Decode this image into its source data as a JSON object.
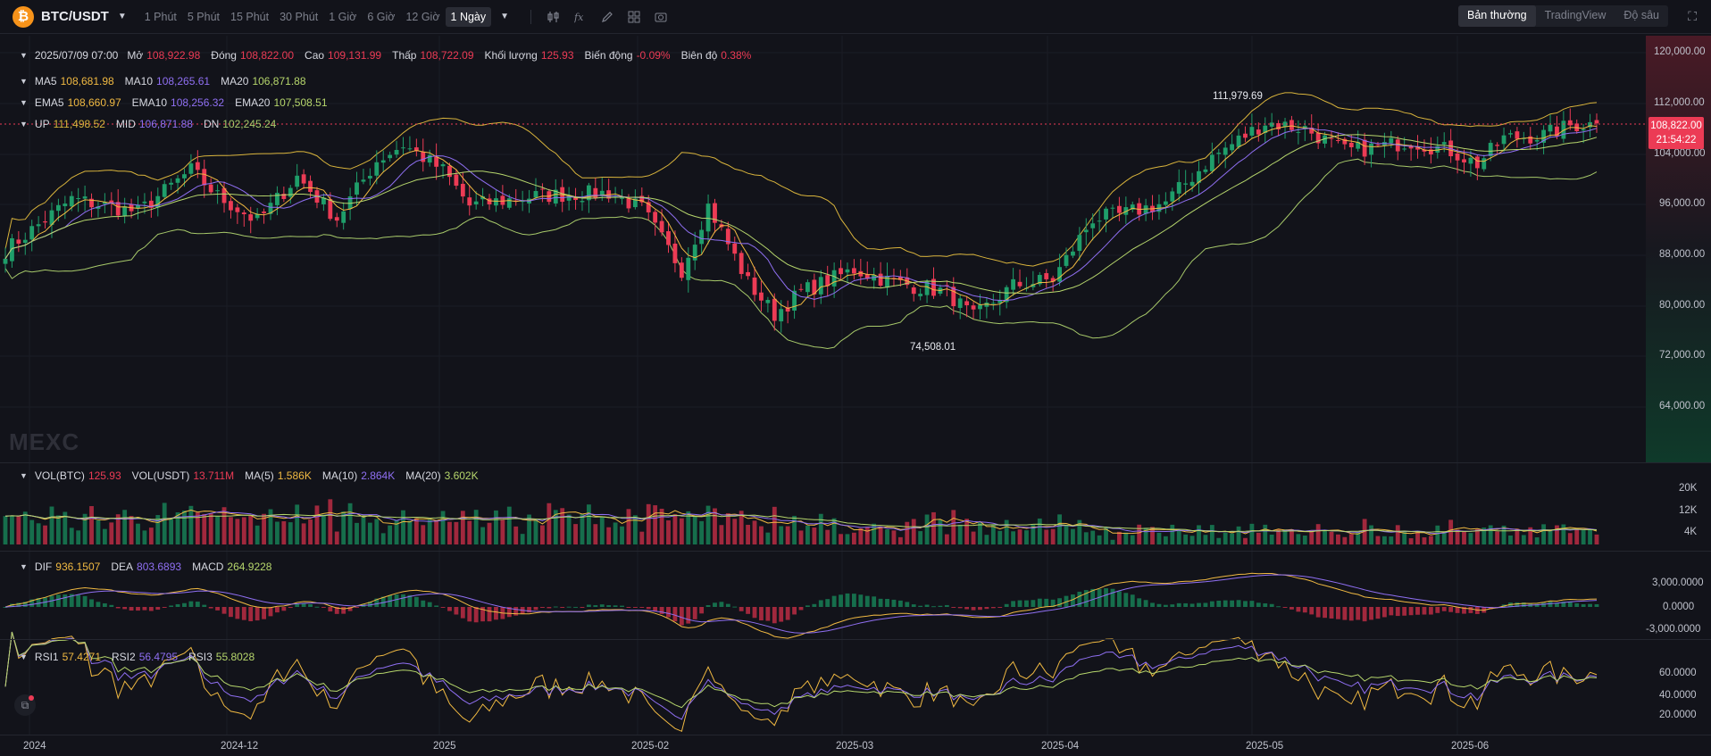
{
  "toolbar": {
    "symbol": "BTC/USDT",
    "intervals": [
      "1 Phút",
      "5 Phút",
      "15 Phút",
      "30 Phút",
      "1 Giờ",
      "6 Giờ",
      "12 Giờ",
      "1 Ngày"
    ],
    "active_interval": "1 Ngày",
    "views": [
      "Bản thường",
      "TradingView",
      "Độ sâu"
    ],
    "active_view": "Bản thường"
  },
  "ohlc": {
    "date": "2025/07/09 07:00",
    "open_label": "Mở",
    "open": "108,922.98",
    "close_label": "Đóng",
    "close": "108,822.00",
    "high_label": "Cao",
    "high": "109,131.99",
    "low_label": "Thấp",
    "low": "108,722.09",
    "volume_label": "Khối lượng",
    "volume": "125.93",
    "change_label": "Biến động",
    "change": "-0.09%",
    "amplitude_label": "Biên độ",
    "amplitude": "0.38%"
  },
  "ma": {
    "ma5_label": "MA5",
    "ma5": "108,681.98",
    "ma10_label": "MA10",
    "ma10": "108,265.61",
    "ma20_label": "MA20",
    "ma20": "106,871.88"
  },
  "ema": {
    "ema5_label": "EMA5",
    "ema5": "108,660.97",
    "ema10_label": "EMA10",
    "ema10": "108,256.32",
    "ema20_label": "EMA20",
    "ema20": "107,508.51"
  },
  "boll": {
    "up_label": "UP",
    "up": "111,498.52",
    "mid_label": "MID",
    "mid": "106,871.88",
    "dn_label": "DN",
    "dn": "102,245.24"
  },
  "price_axis": [
    "120,000.00",
    "112,000.00",
    "104,000.00",
    "96,000.00",
    "88,000.00",
    "80,000.00",
    "72,000.00",
    "64,000.00"
  ],
  "current_price": {
    "price": "108,822.00",
    "countdown": "21:54:22"
  },
  "extremes": {
    "high": "111,979.69",
    "low": "74,508.01"
  },
  "watermark": "MEXC",
  "volume_panel": {
    "vol_btc_label": "VOL(BTC)",
    "vol_btc": "125.93",
    "vol_usdt_label": "VOL(USDT)",
    "vol_usdt": "13.711M",
    "ma5_label": "MA(5)",
    "ma5": "1.586K",
    "ma10_label": "MA(10)",
    "ma10": "2.864K",
    "ma20_label": "MA(20)",
    "ma20": "3.602K",
    "axis": [
      "20K",
      "12K",
      "4K"
    ]
  },
  "macd_panel": {
    "dif_label": "DIF",
    "dif": "936.1507",
    "dea_label": "DEA",
    "dea": "803.6893",
    "macd_label": "MACD",
    "macd": "264.9228",
    "axis": [
      "3,000.0000",
      "0.0000",
      "-3,000.0000"
    ]
  },
  "rsi_panel": {
    "rsi1_label": "RSI1",
    "rsi1": "57.4271",
    "rsi2_label": "RSI2",
    "rsi2": "56.4795",
    "rsi3_label": "RSI3",
    "rsi3": "55.8028",
    "axis": [
      "60.0000",
      "40.0000",
      "20.0000"
    ]
  },
  "date_axis": [
    "2024",
    "2024-12",
    "2025",
    "2025-02",
    "2025-03",
    "2025-04",
    "2025-05",
    "2025-06"
  ],
  "colors": {
    "up": "#1f9e6a",
    "down": "#ec3b55",
    "ma5": "#f0b942",
    "ma10": "#8f6ff2",
    "ma20": "#b6d66c",
    "boll_up": "#d9b43c",
    "boll_mid": "#8f6ff2",
    "boll_dn": "#a7c96a"
  },
  "chart_data": {
    "type": "candlestick",
    "title": "",
    "ylim": [
      56000,
      124000
    ],
    "x_ticks": [
      "2024",
      "2024-12",
      "2025",
      "2025-02",
      "2025-03",
      "2025-04",
      "2025-05",
      "2025-06"
    ],
    "anchors": [
      {
        "day": 0,
        "close": 89000
      },
      {
        "day": 10,
        "close": 97000
      },
      {
        "day": 20,
        "close": 95000
      },
      {
        "day": 28,
        "close": 101500
      },
      {
        "day": 32,
        "close": 97500
      },
      {
        "day": 38,
        "close": 93500
      },
      {
        "day": 44,
        "close": 100500
      },
      {
        "day": 50,
        "close": 94000
      },
      {
        "day": 56,
        "close": 103000
      },
      {
        "day": 60,
        "close": 105500
      },
      {
        "day": 66,
        "close": 101500
      },
      {
        "day": 70,
        "close": 96000
      },
      {
        "day": 80,
        "close": 97500
      },
      {
        "day": 91,
        "close": 98000
      },
      {
        "day": 96,
        "close": 95500
      },
      {
        "day": 102,
        "close": 86000
      },
      {
        "day": 106,
        "close": 96000
      },
      {
        "day": 112,
        "close": 84000
      },
      {
        "day": 116,
        "close": 79000
      },
      {
        "day": 120,
        "close": 82500
      },
      {
        "day": 128,
        "close": 86000
      },
      {
        "day": 134,
        "close": 84000
      },
      {
        "day": 142,
        "close": 82500
      },
      {
        "day": 146,
        "close": 78500
      },
      {
        "day": 152,
        "close": 83500
      },
      {
        "day": 158,
        "close": 84500
      },
      {
        "day": 164,
        "close": 94000
      },
      {
        "day": 168,
        "close": 94500
      },
      {
        "day": 175,
        "close": 96500
      },
      {
        "day": 182,
        "close": 103500
      },
      {
        "day": 190,
        "close": 109000
      },
      {
        "day": 196,
        "close": 108000
      },
      {
        "day": 202,
        "close": 104500
      },
      {
        "day": 206,
        "close": 105000
      },
      {
        "day": 212,
        "close": 106000
      },
      {
        "day": 218,
        "close": 104500
      },
      {
        "day": 222,
        "close": 102500
      },
      {
        "day": 226,
        "close": 106500
      },
      {
        "day": 232,
        "close": 107000
      },
      {
        "day": 236,
        "close": 108500
      },
      {
        "day": 240,
        "close": 108822
      }
    ]
  }
}
